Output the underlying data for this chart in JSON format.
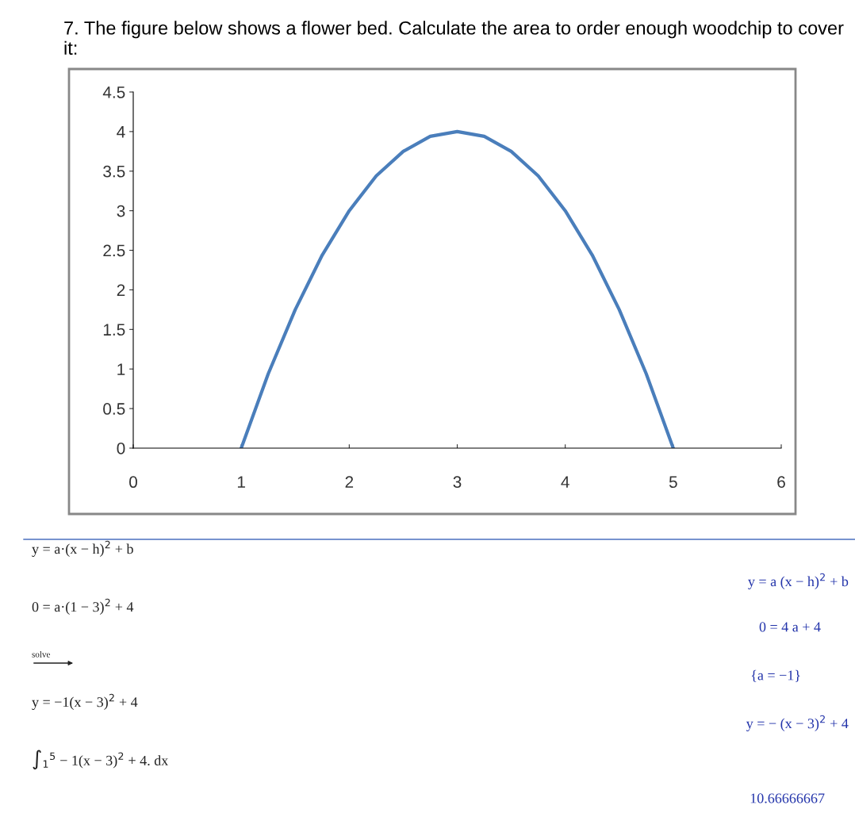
{
  "chart_data": {
    "type": "line",
    "title": "7. The figure below shows a flower bed. Calculate the area to order enough woodchip to cover it:",
    "x": [
      1,
      1.25,
      1.5,
      1.75,
      2,
      2.25,
      2.5,
      2.75,
      3,
      3.25,
      3.5,
      3.75,
      4,
      4.25,
      4.5,
      4.75,
      5
    ],
    "series": [
      {
        "color": "#4a7ebb",
        "values": [
          0,
          0.94,
          1.75,
          2.44,
          3,
          3.44,
          3.75,
          3.94,
          4,
          3.94,
          3.75,
          3.44,
          3,
          2.44,
          1.75,
          0.94,
          0
        ]
      }
    ],
    "xlim": [
      0,
      6
    ],
    "xticks": [
      0,
      1,
      2,
      3,
      4,
      5,
      6
    ],
    "ylim": [
      0,
      4.5
    ],
    "yticks": [
      0,
      0.5,
      1,
      1.5,
      2,
      2.5,
      3,
      3.5,
      4,
      4.5
    ],
    "grid": false,
    "legend": false,
    "marker": "none",
    "line_style": "solid",
    "annotations": [
      "y = a·(x − h)$^{2}$ + b",
      "0 = a·(1 − 3)$^{2}$ + 4",
      "solve",
      "y = −1(x − 3)$^{2}$ + 4",
      "∫$_{1}$$^{5}$ − 1(x − 3)$^{2}$ + 4. dx",
      "y = a (x − h)$^{2}$ + b",
      "0 = 4 a + 4",
      "{a = −1}",
      "y = − (x − 3)$^{2}$ + 4",
      "10.66666667"
    ]
  }
}
